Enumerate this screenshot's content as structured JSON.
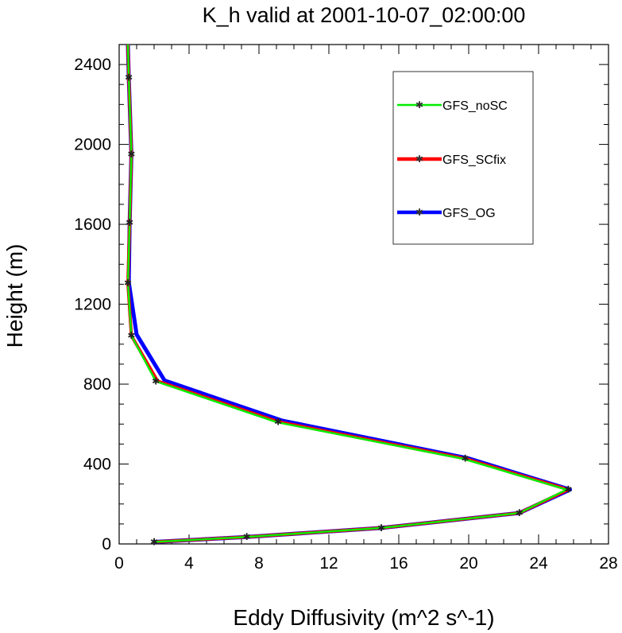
{
  "chart_data": {
    "type": "line",
    "title": "K_h valid at 2001-10-07_02:00:00",
    "xlabel": "Eddy Diffusivity (m^2 s^-1)",
    "ylabel": "Height (m)",
    "xlim": [
      0,
      28
    ],
    "ylim": [
      0,
      2500
    ],
    "xticks": [
      "0",
      "4",
      "8",
      "12",
      "16",
      "20",
      "24",
      "28"
    ],
    "yticks": [
      "0",
      "400",
      "800",
      "1200",
      "1600",
      "2000",
      "2400"
    ],
    "grid": false,
    "legend_position": "top-right",
    "series": [
      {
        "name": "GFS_OG",
        "color": "#0000ff",
        "points": [
          [
            2.0,
            10
          ],
          [
            7.3,
            35
          ],
          [
            15.0,
            80
          ],
          [
            22.9,
            155
          ],
          [
            25.8,
            272
          ],
          [
            20.0,
            428
          ],
          [
            9.3,
            618
          ],
          [
            2.6,
            818
          ],
          [
            1.0,
            1048
          ],
          [
            0.55,
            1310
          ],
          [
            0.6,
            1608
          ],
          [
            0.7,
            1950
          ],
          [
            0.55,
            2335
          ],
          [
            0.5,
            2500
          ]
        ]
      },
      {
        "name": "GFS_SCfix",
        "color": "#ff0000",
        "points": [
          [
            2.0,
            10
          ],
          [
            7.3,
            35
          ],
          [
            15.0,
            80
          ],
          [
            22.9,
            155
          ],
          [
            25.7,
            272
          ],
          [
            19.8,
            427
          ],
          [
            9.1,
            612
          ],
          [
            2.2,
            815
          ],
          [
            0.7,
            1042
          ],
          [
            0.5,
            1305
          ],
          [
            0.6,
            1608
          ],
          [
            0.7,
            1950
          ],
          [
            0.55,
            2335
          ],
          [
            0.5,
            2500
          ]
        ]
      },
      {
        "name": "GFS_noSC",
        "color": "#00ee00",
        "points": [
          [
            2.0,
            10
          ],
          [
            7.3,
            35
          ],
          [
            15.0,
            80
          ],
          [
            22.9,
            155
          ],
          [
            25.6,
            272
          ],
          [
            19.7,
            426
          ],
          [
            9.0,
            610
          ],
          [
            2.1,
            814
          ],
          [
            0.7,
            1042
          ],
          [
            0.5,
            1305
          ],
          [
            0.6,
            1608
          ],
          [
            0.7,
            1950
          ],
          [
            0.55,
            2335
          ],
          [
            0.5,
            2500
          ]
        ]
      }
    ],
    "markers": [
      [
        2.0,
        10
      ],
      [
        7.3,
        35
      ],
      [
        15.0,
        80
      ],
      [
        22.9,
        155
      ],
      [
        25.7,
        272
      ],
      [
        19.8,
        427
      ],
      [
        9.1,
        612
      ],
      [
        2.1,
        815
      ],
      [
        0.7,
        1042
      ],
      [
        0.5,
        1305
      ],
      [
        0.6,
        1608
      ],
      [
        0.7,
        1950
      ],
      [
        0.55,
        2335
      ]
    ],
    "legend": [
      {
        "label": "GFS_noSC",
        "color": "#00ee00"
      },
      {
        "label": "GFS_SCfix",
        "color": "#ff0000"
      },
      {
        "label": "GFS_OG",
        "color": "#0000ff"
      }
    ]
  }
}
